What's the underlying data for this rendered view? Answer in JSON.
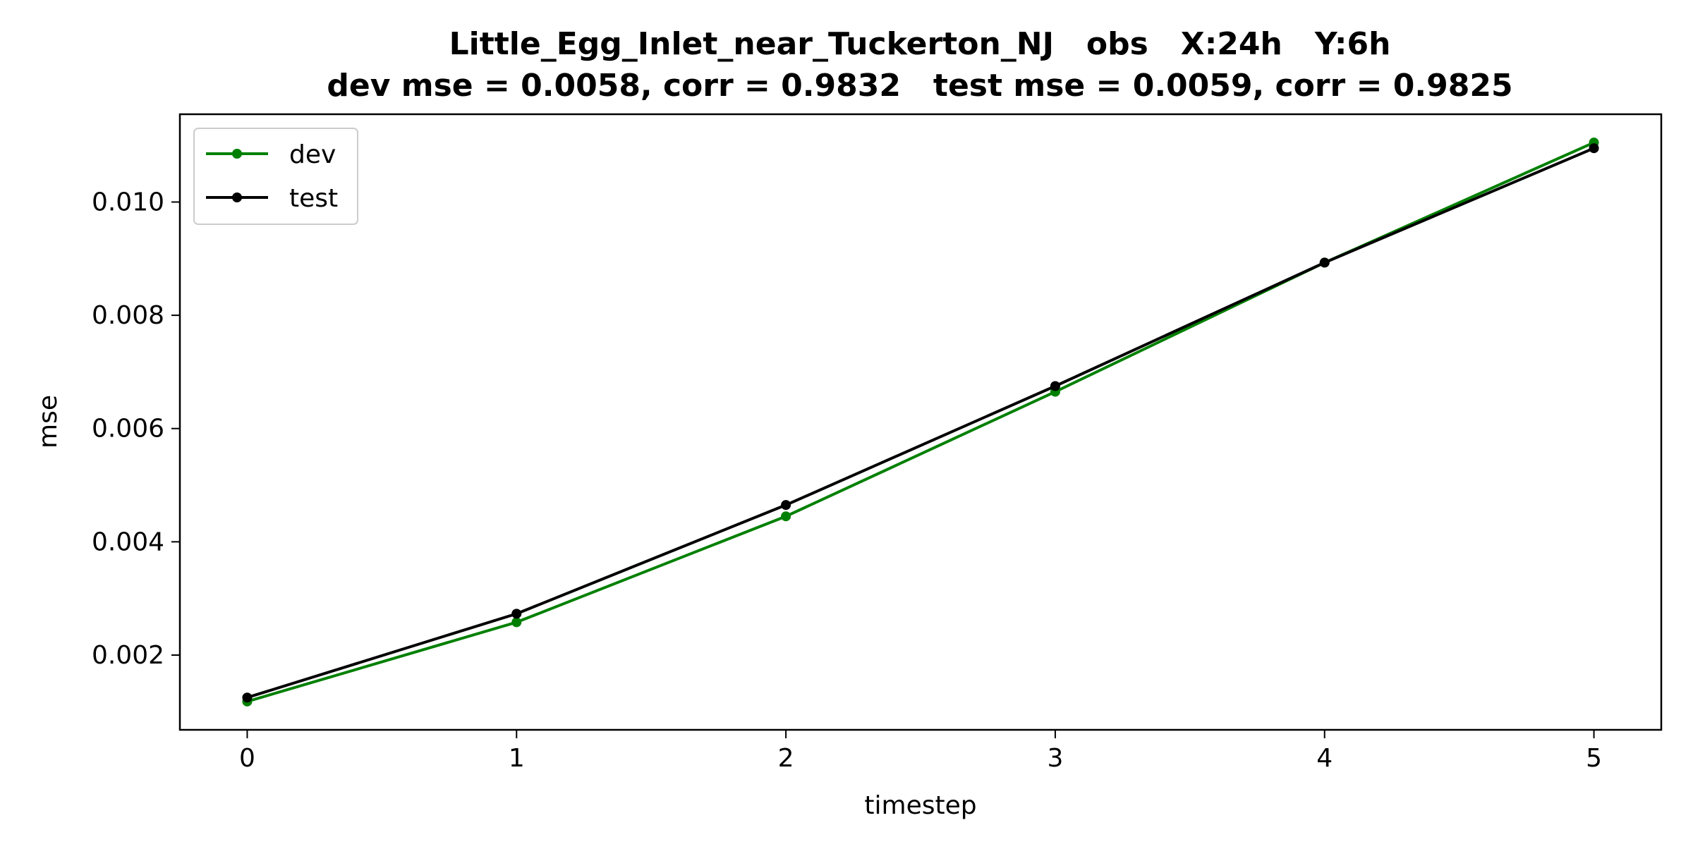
{
  "chart_data": {
    "type": "line",
    "title": "Little_Egg_Inlet_near_Tuckerton_NJ   obs   X:24h   Y:6h",
    "subtitle": "dev mse = 0.0058, corr = 0.9832   test mse = 0.0059, corr = 0.9825",
    "xlabel": "timestep",
    "ylabel": "mse",
    "x": [
      0,
      1,
      2,
      3,
      4,
      5
    ],
    "xlim": [
      -0.25,
      5.25
    ],
    "ylim": [
      0.00068,
      0.01155
    ],
    "xticks": [
      0,
      1,
      2,
      3,
      4,
      5
    ],
    "yticks": [
      0.002,
      0.004,
      0.006,
      0.008,
      0.01
    ],
    "xtick_labels": [
      "0",
      "1",
      "2",
      "3",
      "4",
      "5"
    ],
    "ytick_labels": [
      "0.002",
      "0.004",
      "0.006",
      "0.008",
      "0.010"
    ],
    "grid": false,
    "legend_position": "top-left",
    "series": [
      {
        "name": "dev",
        "color": "#008000",
        "marker": "circle",
        "values": [
          0.00118,
          0.00258,
          0.00445,
          0.00665,
          0.00893,
          0.01105
        ]
      },
      {
        "name": "test",
        "color": "#000000",
        "marker": "circle",
        "values": [
          0.00125,
          0.00273,
          0.00465,
          0.00675,
          0.00893,
          0.01095
        ]
      }
    ]
  }
}
